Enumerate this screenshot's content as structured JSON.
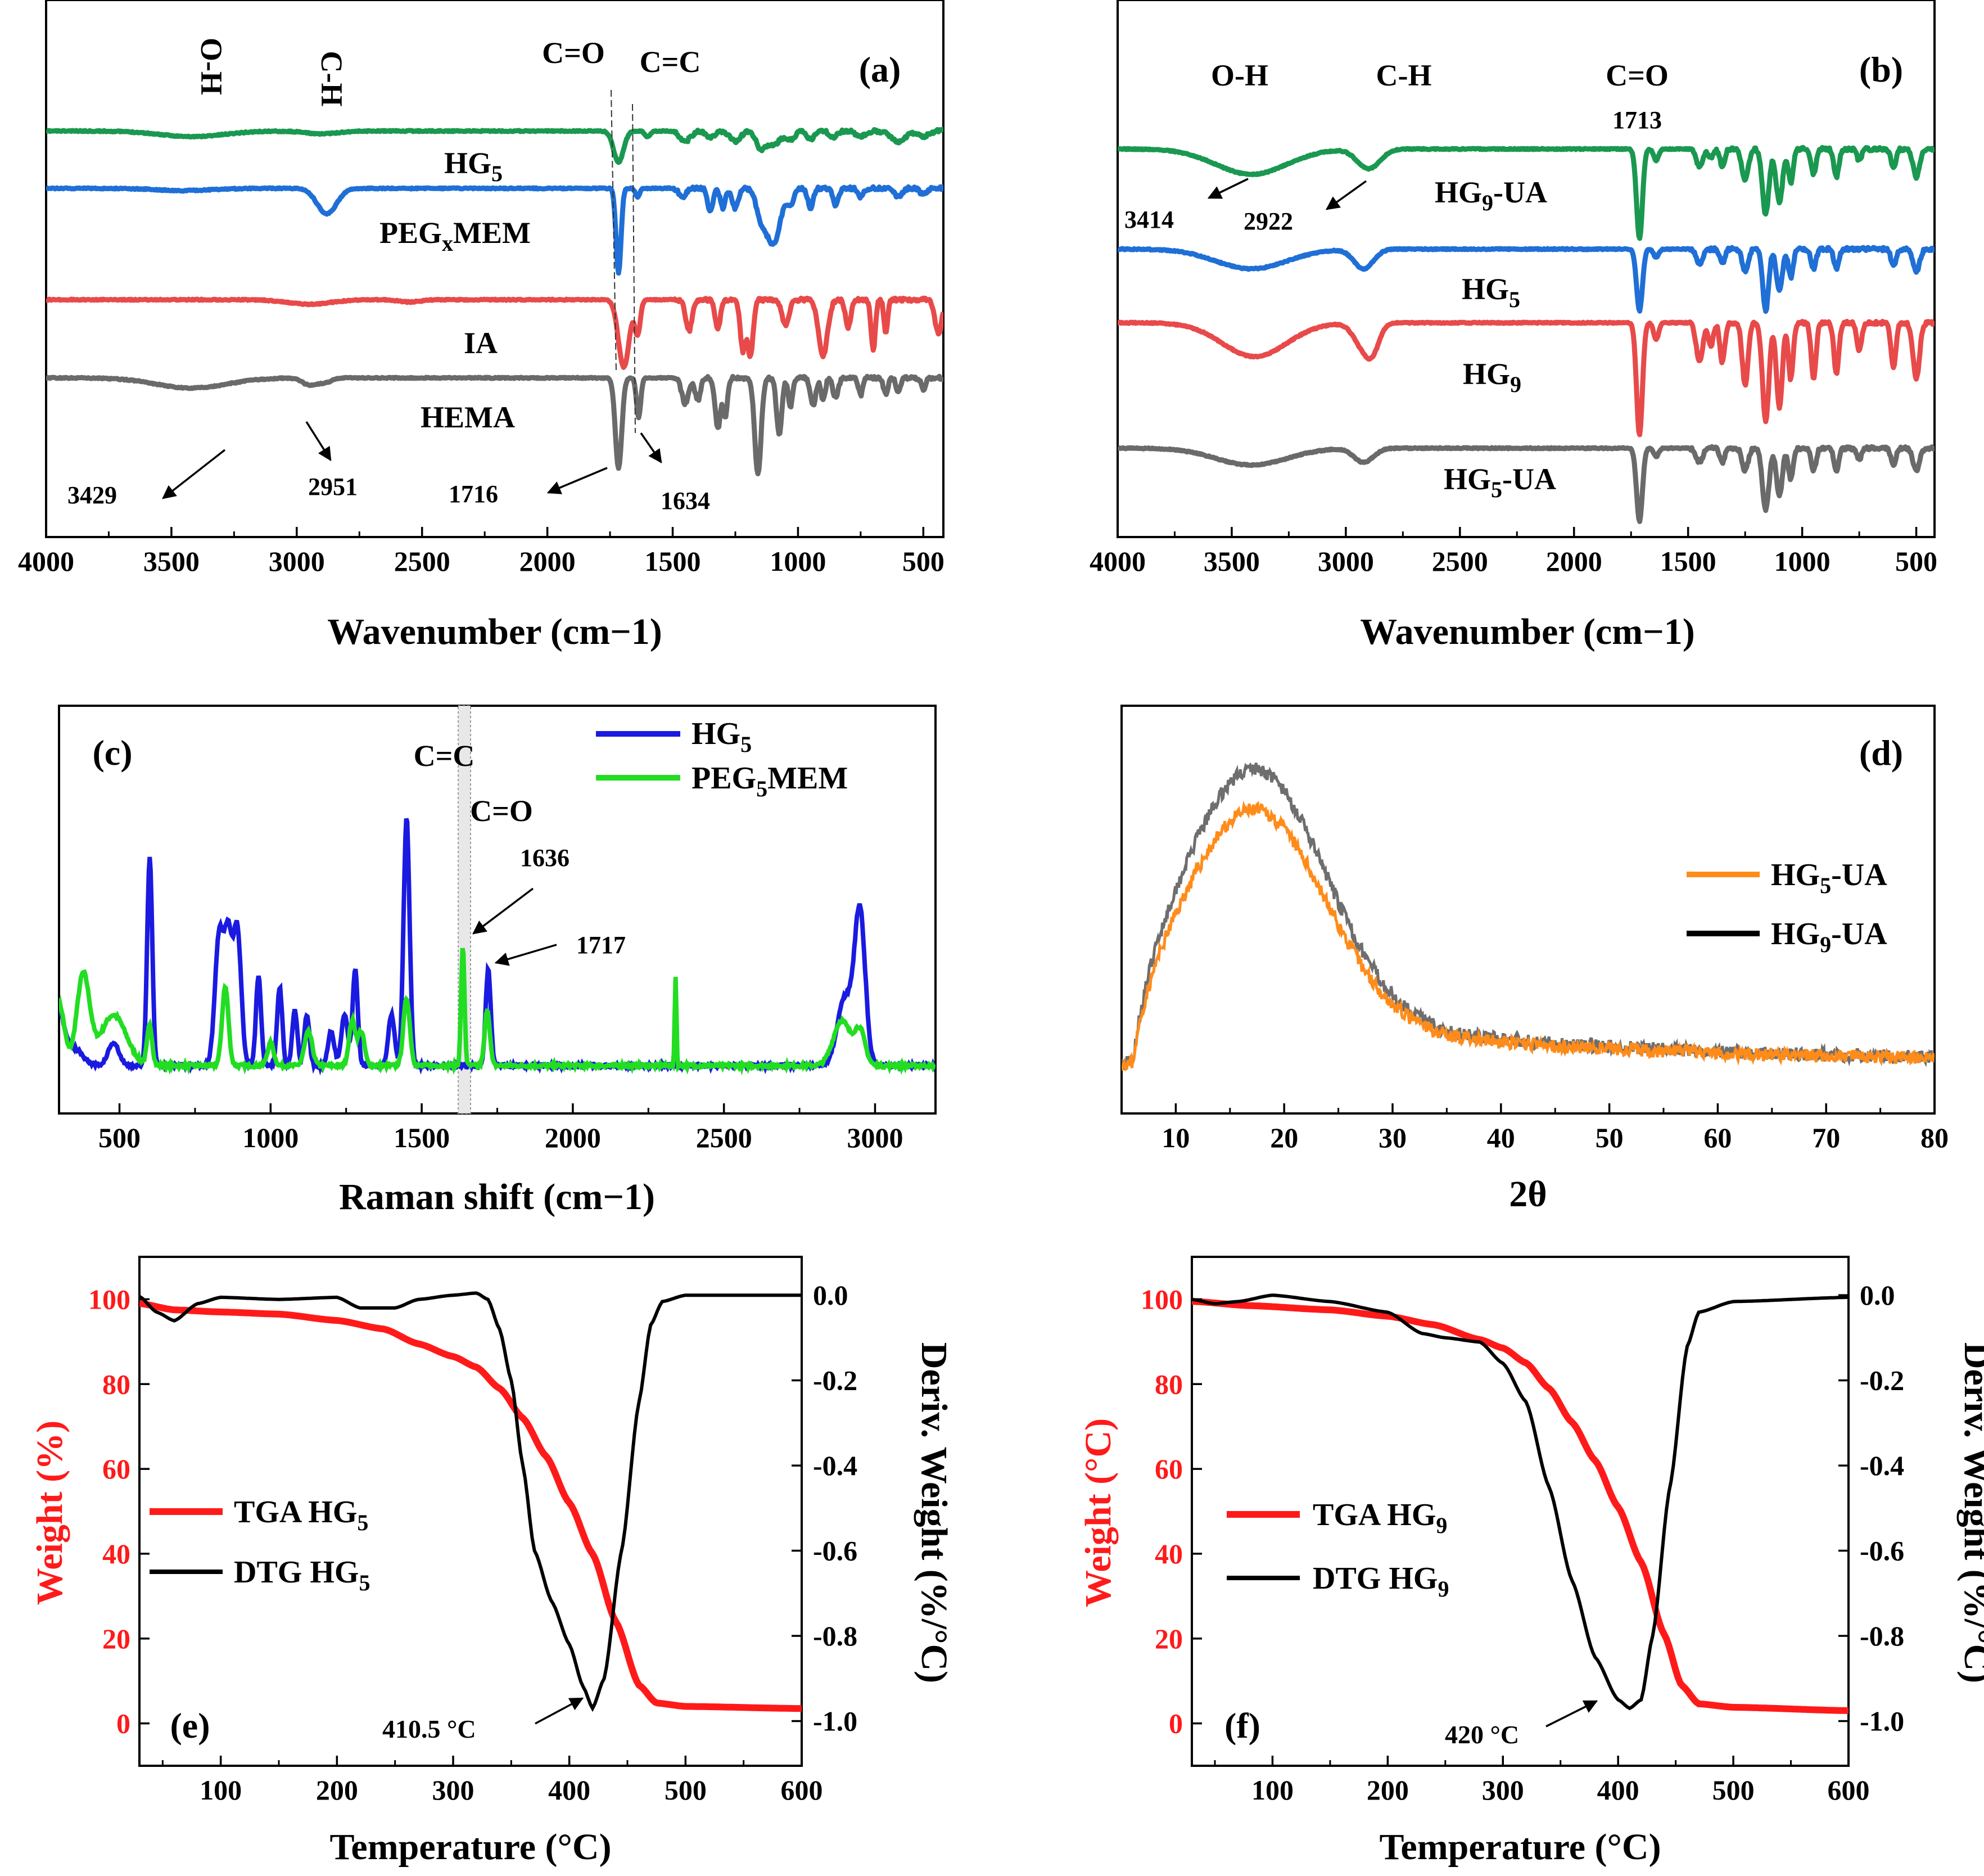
{
  "chart_data": [
    {
      "id": "a",
      "type": "line",
      "panel_label": "(a)",
      "xlabel": "Wavenumber (cm−1)",
      "xlim": [
        4000,
        420
      ],
      "reversed_x": true,
      "xticks": [
        "4000",
        "3500",
        "3000",
        "2500",
        "2000",
        "1500",
        "1000",
        "500"
      ],
      "series": [
        {
          "name": "HG5",
          "label": "HG",
          "sub": "5",
          "color": "#1a9850"
        },
        {
          "name": "PEGxMEM",
          "label": "PEG",
          "sub": "x",
          "label_after": "MEM",
          "color": "#1f6fd6"
        },
        {
          "name": "IA",
          "label": "IA",
          "sub": "",
          "color": "#e84a4a"
        },
        {
          "name": "HEMA",
          "label": "HEMA",
          "sub": "",
          "color": "#6a6a6a"
        }
      ],
      "group_labels": [
        "O-H",
        "C-H",
        "C=O",
        "C=C"
      ],
      "peak_labels": [
        "3429",
        "2951",
        "1716",
        "1634"
      ]
    },
    {
      "id": "b",
      "type": "line",
      "panel_label": "(b)",
      "xlabel": "Wavenumber (cm−1)",
      "xlim": [
        4000,
        420
      ],
      "reversed_x": true,
      "xticks": [
        "4000",
        "3500",
        "3000",
        "2500",
        "2000",
        "1500",
        "1000",
        "500"
      ],
      "series": [
        {
          "name": "HG9-UA",
          "label": "HG",
          "sub": "9",
          "label_after": "-UA",
          "color": "#1a9850"
        },
        {
          "name": "HG5",
          "label": "HG",
          "sub": "5",
          "color": "#1f6fd6"
        },
        {
          "name": "HG9",
          "label": "HG",
          "sub": "9",
          "color": "#e84a4a"
        },
        {
          "name": "HG5-UA",
          "label": "HG",
          "sub": "5",
          "label_after": "-UA",
          "color": "#6a6a6a"
        }
      ],
      "group_labels": [
        "O-H",
        "C-H",
        "C=O"
      ],
      "peak_labels": [
        "1713",
        "3414",
        "2922"
      ]
    },
    {
      "id": "c",
      "type": "line",
      "panel_label": "(c)",
      "xlabel": "Raman shift (cm−1)",
      "xlim": [
        300,
        3200
      ],
      "xticks": [
        "500",
        "1000",
        "1500",
        "2000",
        "2500",
        "3000"
      ],
      "series": [
        {
          "name": "HG5",
          "label": "HG",
          "sub": "5",
          "color": "#1a1ae0"
        },
        {
          "name": "PEG5MEM",
          "label": "PEG",
          "sub": "5",
          "label_after": "MEM",
          "color": "#22dd22"
        }
      ],
      "group_labels": [
        "C=C",
        "C=O"
      ],
      "peak_labels": [
        "1636",
        "1717"
      ]
    },
    {
      "id": "d",
      "type": "line",
      "panel_label": "(d)",
      "xlabel": "2θ",
      "xlim": [
        5,
        80
      ],
      "xticks": [
        "10",
        "20",
        "30",
        "40",
        "50",
        "60",
        "70",
        "80"
      ],
      "series": [
        {
          "name": "HG5-UA",
          "label": "HG",
          "sub": "5",
          "label_after": "-UA",
          "color": "#ff8c1a"
        },
        {
          "name": "HG9-UA",
          "label": "HG",
          "sub": "9",
          "label_after": "-UA",
          "color": "#000000",
          "line_color": "#6e6e6e"
        }
      ]
    },
    {
      "id": "e",
      "type": "line",
      "panel_label": "(e)",
      "xlabel": "Temperature (°C)",
      "ylabel": "Weight (%)",
      "y2label": "Deriv. Weight (%/°C)",
      "xlim": [
        30,
        600
      ],
      "ylim": [
        -10,
        110
      ],
      "y2lim": [
        -1.105,
        0.09
      ],
      "xticks": [
        "100",
        "200",
        "300",
        "400",
        "500",
        "600"
      ],
      "yticks": [
        "0",
        "20",
        "40",
        "60",
        "80",
        "100"
      ],
      "y2ticks": [
        "0.0",
        "-0.2",
        "-0.4",
        "-0.6",
        "-0.8",
        "-1.0"
      ],
      "tga": [
        [
          30,
          99
        ],
        [
          60,
          97.5
        ],
        [
          100,
          97
        ],
        [
          150,
          96.5
        ],
        [
          200,
          95
        ],
        [
          240,
          93
        ],
        [
          270,
          89.5
        ],
        [
          300,
          86.5
        ],
        [
          320,
          84
        ],
        [
          340,
          79
        ],
        [
          360,
          72
        ],
        [
          380,
          63
        ],
        [
          400,
          52
        ],
        [
          420,
          40
        ],
        [
          440,
          24
        ],
        [
          460,
          9
        ],
        [
          475,
          4.8
        ],
        [
          500,
          4
        ],
        [
          600,
          3.5
        ]
      ],
      "dtg": [
        [
          30,
          -0.003
        ],
        [
          45,
          -0.04
        ],
        [
          60,
          -0.06
        ],
        [
          80,
          -0.02
        ],
        [
          100,
          -0.005
        ],
        [
          150,
          -0.01
        ],
        [
          200,
          -0.005
        ],
        [
          220,
          -0.03
        ],
        [
          250,
          -0.03
        ],
        [
          270,
          -0.01
        ],
        [
          300,
          0.0
        ],
        [
          320,
          0.005
        ],
        [
          330,
          -0.01
        ],
        [
          340,
          -0.08
        ],
        [
          350,
          -0.2
        ],
        [
          360,
          -0.4
        ],
        [
          370,
          -0.6
        ],
        [
          385,
          -0.72
        ],
        [
          400,
          -0.82
        ],
        [
          412,
          -0.92
        ],
        [
          420,
          -0.97
        ],
        [
          430,
          -0.9
        ],
        [
          445,
          -0.6
        ],
        [
          460,
          -0.25
        ],
        [
          470,
          -0.07
        ],
        [
          480,
          -0.015
        ],
        [
          500,
          0.0
        ],
        [
          600,
          0.0
        ]
      ],
      "series": [
        {
          "name": "TGA HG5",
          "label": "TGA HG",
          "sub": "5",
          "color": "#ff1a1a"
        },
        {
          "name": "DTG HG5",
          "label": "DTG HG",
          "sub": "5",
          "color": "#000000"
        }
      ],
      "peak_labels": [
        "410.5 °C"
      ]
    },
    {
      "id": "f",
      "type": "line",
      "panel_label": "(f)",
      "xlabel": "Temperature (°C)",
      "ylabel": "Weight (°C)",
      "y2label": "Deriv. Weight (%/°C)",
      "xlim": [
        30,
        600
      ],
      "ylim": [
        -10,
        110
      ],
      "y2lim": [
        -1.105,
        0.09
      ],
      "xticks": [
        "100",
        "200",
        "300",
        "400",
        "500",
        "600"
      ],
      "yticks": [
        "0",
        "20",
        "40",
        "60",
        "80",
        "100"
      ],
      "y2ticks": [
        "0.0",
        "-0.2",
        "-0.4",
        "-0.6",
        "-0.8",
        "-1.0"
      ],
      "tga": [
        [
          30,
          99.5
        ],
        [
          80,
          98.5
        ],
        [
          150,
          97.5
        ],
        [
          200,
          96
        ],
        [
          240,
          94
        ],
        [
          280,
          90.5
        ],
        [
          300,
          88.5
        ],
        [
          320,
          85
        ],
        [
          340,
          79
        ],
        [
          360,
          71
        ],
        [
          380,
          62
        ],
        [
          400,
          51
        ],
        [
          420,
          38
        ],
        [
          440,
          21
        ],
        [
          455,
          9
        ],
        [
          470,
          4.6
        ],
        [
          500,
          3.8
        ],
        [
          600,
          3.0
        ]
      ],
      "dtg": [
        [
          30,
          -0.01
        ],
        [
          50,
          -0.02
        ],
        [
          70,
          -0.015
        ],
        [
          100,
          0.0
        ],
        [
          150,
          -0.015
        ],
        [
          200,
          -0.04
        ],
        [
          230,
          -0.09
        ],
        [
          250,
          -0.1
        ],
        [
          280,
          -0.11
        ],
        [
          300,
          -0.16
        ],
        [
          320,
          -0.25
        ],
        [
          340,
          -0.45
        ],
        [
          360,
          -0.67
        ],
        [
          380,
          -0.85
        ],
        [
          400,
          -0.95
        ],
        [
          410,
          -0.97
        ],
        [
          420,
          -0.95
        ],
        [
          430,
          -0.8
        ],
        [
          445,
          -0.45
        ],
        [
          460,
          -0.12
        ],
        [
          470,
          -0.04
        ],
        [
          500,
          -0.015
        ],
        [
          600,
          -0.005
        ]
      ],
      "series": [
        {
          "name": "TGA HG9",
          "label": "TGA HG",
          "sub": "9",
          "color": "#ff1a1a"
        },
        {
          "name": "DTG HG9",
          "label": "DTG HG",
          "sub": "9",
          "color": "#000000"
        }
      ],
      "peak_labels": [
        "420 °C"
      ]
    }
  ]
}
